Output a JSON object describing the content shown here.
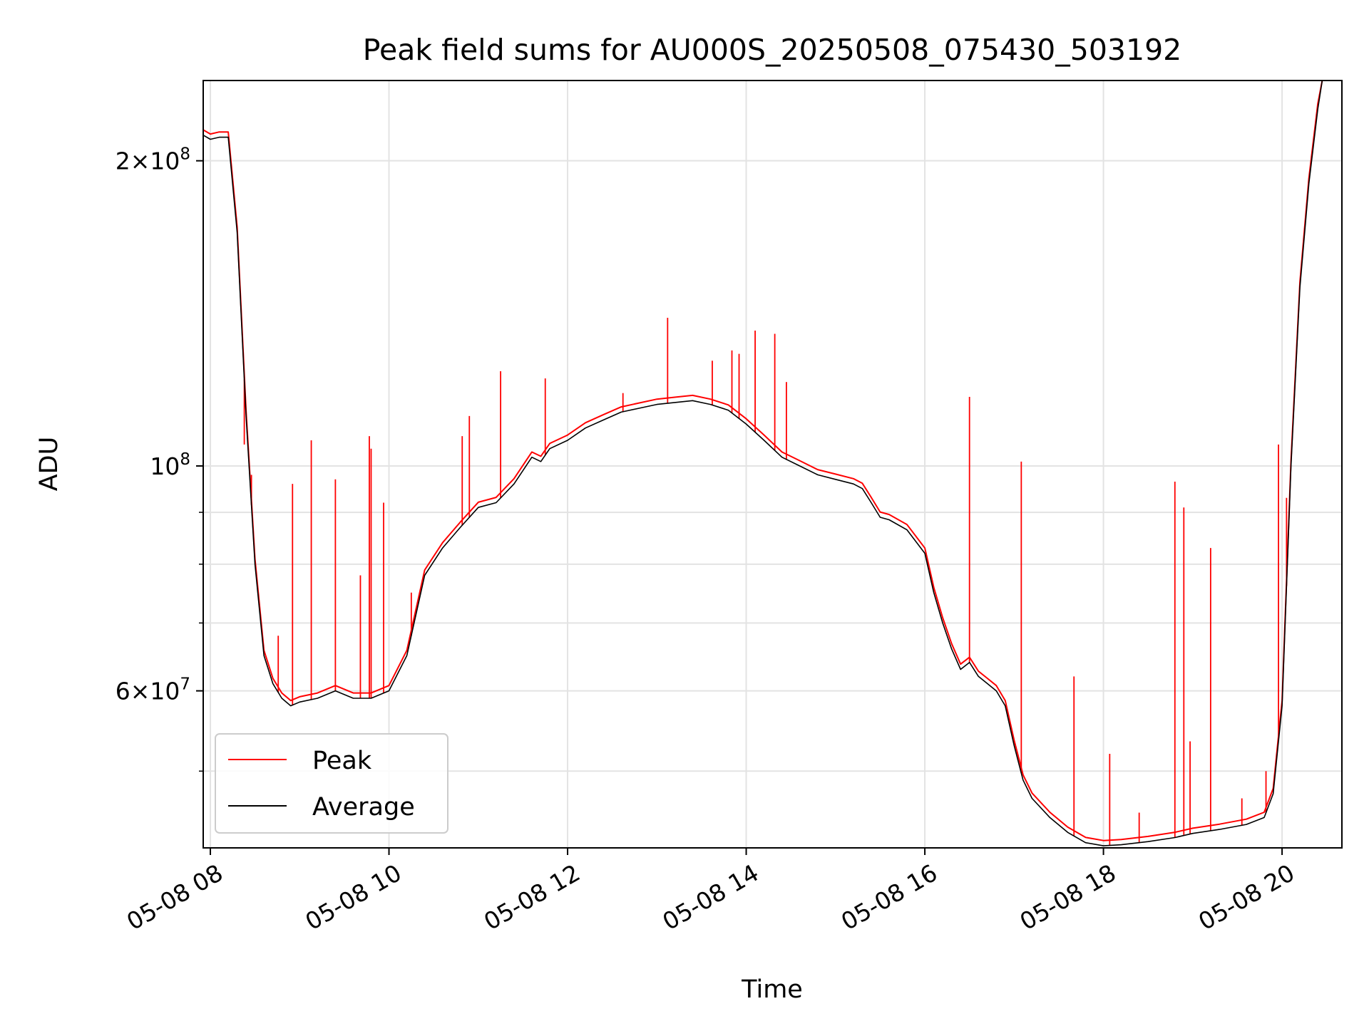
{
  "chart_data": {
    "type": "line",
    "title": "Peak field sums for AU000S_20250508_075430_503192",
    "xlabel": "Time",
    "ylabel": "ADU",
    "x_unit": "hours (local time, 2025-05-08)",
    "xlim": [
      7.92,
      20.67
    ],
    "ylim": [
      42000000,
      240000000
    ],
    "yscale": "log",
    "grid": true,
    "legend_position": "lower-left",
    "x_tick_values": [
      8,
      10,
      12,
      14,
      16,
      18,
      20
    ],
    "x_tick_labels": [
      "05-08 08",
      "05-08 10",
      "05-08 12",
      "05-08 14",
      "05-08 16",
      "05-08 18",
      "05-08 20"
    ],
    "y_major_ticks": [
      {
        "value": 200000000,
        "mantissa": "2",
        "exponent": "8"
      },
      {
        "value": 100000000,
        "mantissa": "",
        "exponent": "8"
      },
      {
        "value": 60000000,
        "mantissa": "6",
        "exponent": "7"
      }
    ],
    "y_minor_gridlines": [
      50000000,
      70000000,
      80000000,
      90000000
    ],
    "series": [
      {
        "name": "Average",
        "color": "#000000",
        "x": [
          7.92,
          8.0,
          8.1,
          8.2,
          8.3,
          8.4,
          8.5,
          8.6,
          8.7,
          8.8,
          8.9,
          9.0,
          9.2,
          9.4,
          9.6,
          9.8,
          10.0,
          10.2,
          10.4,
          10.6,
          10.8,
          11.0,
          11.2,
          11.4,
          11.6,
          11.7,
          11.8,
          12.0,
          12.2,
          12.4,
          12.6,
          12.8,
          13.0,
          13.2,
          13.4,
          13.6,
          13.8,
          14.0,
          14.2,
          14.4,
          14.6,
          14.8,
          15.0,
          15.2,
          15.3,
          15.4,
          15.5,
          15.6,
          15.8,
          16.0,
          16.1,
          16.2,
          16.3,
          16.4,
          16.5,
          16.6,
          16.7,
          16.8,
          16.9,
          17.0,
          17.1,
          17.2,
          17.4,
          17.6,
          17.8,
          18.0,
          18.2,
          18.5,
          18.8,
          19.0,
          19.3,
          19.6,
          19.8,
          19.9,
          20.0,
          20.1,
          20.2,
          20.3,
          20.4,
          20.45
        ],
        "y": [
          212000000,
          210000000,
          211000000,
          211000000,
          170000000,
          112000000,
          80000000,
          65000000,
          61000000,
          59000000,
          58000000,
          58500000,
          59000000,
          60000000,
          59000000,
          59000000,
          60000000,
          65000000,
          78000000,
          83000000,
          87000000,
          91000000,
          92000000,
          96000000,
          102000000,
          101000000,
          104000000,
          106000000,
          109000000,
          111000000,
          113000000,
          114000000,
          115000000,
          115500000,
          116000000,
          115000000,
          113500000,
          110000000,
          106000000,
          102000000,
          100000000,
          98000000,
          97000000,
          96000000,
          95000000,
          92000000,
          89000000,
          88500000,
          86500000,
          82000000,
          75000000,
          70000000,
          66000000,
          63000000,
          64000000,
          62000000,
          61000000,
          60000000,
          58000000,
          53000000,
          49000000,
          47000000,
          45000000,
          43500000,
          42500000,
          42200000,
          42300000,
          42600000,
          43000000,
          43400000,
          43800000,
          44300000,
          45000000,
          47500000,
          58000000,
          100000000,
          150000000,
          190000000,
          225000000,
          240000000
        ]
      },
      {
        "name": "Peak",
        "color": "#ff0000",
        "spikes": [
          {
            "x": 8.38,
            "y": 105000000
          },
          {
            "x": 8.46,
            "y": 98000000
          },
          {
            "x": 8.76,
            "y": 68000000
          },
          {
            "x": 8.92,
            "y": 96000000
          },
          {
            "x": 9.13,
            "y": 106000000
          },
          {
            "x": 9.4,
            "y": 97000000
          },
          {
            "x": 9.68,
            "y": 78000000
          },
          {
            "x": 9.78,
            "y": 107000000
          },
          {
            "x": 9.8,
            "y": 104000000
          },
          {
            "x": 9.94,
            "y": 92000000
          },
          {
            "x": 10.25,
            "y": 75000000
          },
          {
            "x": 10.82,
            "y": 107000000
          },
          {
            "x": 10.9,
            "y": 112000000
          },
          {
            "x": 11.25,
            "y": 124000000
          },
          {
            "x": 11.75,
            "y": 122000000
          },
          {
            "x": 12.62,
            "y": 118000000
          },
          {
            "x": 13.12,
            "y": 140000000
          },
          {
            "x": 13.62,
            "y": 127000000
          },
          {
            "x": 13.84,
            "y": 130000000
          },
          {
            "x": 13.92,
            "y": 129000000
          },
          {
            "x": 14.1,
            "y": 136000000
          },
          {
            "x": 14.32,
            "y": 135000000
          },
          {
            "x": 14.45,
            "y": 121000000
          },
          {
            "x": 16.5,
            "y": 117000000
          },
          {
            "x": 17.08,
            "y": 101000000
          },
          {
            "x": 17.67,
            "y": 62000000
          },
          {
            "x": 18.07,
            "y": 52000000
          },
          {
            "x": 18.4,
            "y": 45500000
          },
          {
            "x": 18.8,
            "y": 96500000
          },
          {
            "x": 18.9,
            "y": 91000000
          },
          {
            "x": 18.97,
            "y": 53500000
          },
          {
            "x": 19.2,
            "y": 83000000
          },
          {
            "x": 19.55,
            "y": 47000000
          },
          {
            "x": 19.82,
            "y": 50000000
          },
          {
            "x": 19.96,
            "y": 105000000
          },
          {
            "x": 20.05,
            "y": 93000000
          }
        ]
      }
    ]
  }
}
